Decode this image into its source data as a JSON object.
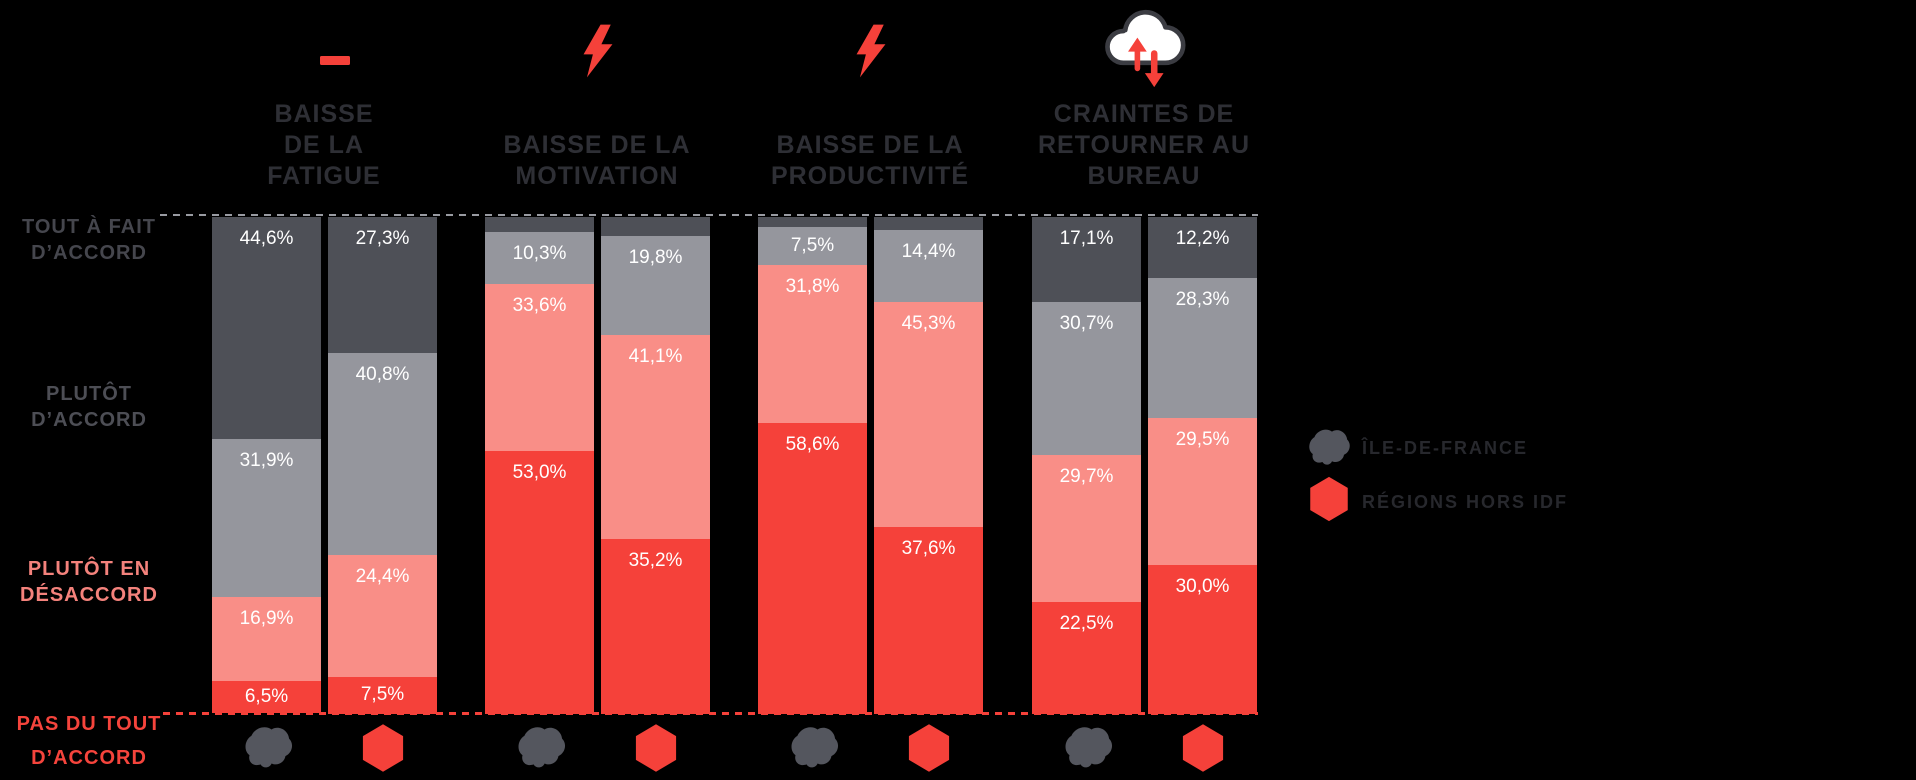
{
  "background_color": "#000000",
  "accent_color": "#f5413a",
  "chart_data": {
    "type": "bar",
    "stacked": true,
    "orientation": "vertical",
    "value_unit": "percent",
    "value_label_color": "#ffffff",
    "segment_colors": [
      "#4e5057",
      "#95969d",
      "#f98e87",
      "#f5413a"
    ],
    "axis": {
      "top_dashed_line_color": "#999ba2",
      "bottom_dashed_line_color": "#f5413a",
      "grid": "off"
    },
    "categories": [
      {
        "label": "TOUT À FAIT\nD’ACCORD",
        "color": "#45464d"
      },
      {
        "label": "PLUTÔT\nD’ACCORD",
        "color": "#4d4e55"
      },
      {
        "label": "PLUTÔT EN\nDÉSACCORD",
        "color": "#f4827c"
      },
      {
        "label": "PAS DU TOUT\nD’ACCORD",
        "color": "#f5443c"
      }
    ],
    "series_names": [
      "ÎLE-DE-FRANCE",
      "RÉGIONS HORS IDF"
    ],
    "x_axis_icons": [
      "idf-region-icon",
      "hexagon-icon"
    ],
    "groups": [
      {
        "id": "baisse-fatigue",
        "title": "BAISSE\nDE LA\nFATIGUE",
        "icon": "minus-icon",
        "series": [
          {
            "name": "ÎLE-DE-FRANCE",
            "segments": [
              {
                "value": 44.6,
                "label": "44,6%"
              },
              {
                "value": 31.9,
                "label": "31,9%"
              },
              {
                "value": 16.9,
                "label": "16,9%"
              },
              {
                "value": 6.5,
                "label": "6,5%"
              }
            ]
          },
          {
            "name": "RÉGIONS HORS IDF",
            "segments": [
              {
                "value": 27.3,
                "label": "27,3%"
              },
              {
                "value": 40.8,
                "label": "40,8%"
              },
              {
                "value": 24.4,
                "label": "24,4%"
              },
              {
                "value": 7.5,
                "label": "7,5%"
              }
            ]
          }
        ]
      },
      {
        "id": "baisse-motivation",
        "title": "BAISSE DE LA\nMOTIVATION",
        "icon": "lightning-icon",
        "series": [
          {
            "name": "ÎLE-DE-FRANCE",
            "segments": [
              {
                "value": 3.1,
                "label": ""
              },
              {
                "value": 10.3,
                "label": "10,3%"
              },
              {
                "value": 33.6,
                "label": "33,6%"
              },
              {
                "value": 53.0,
                "label": "53,0%"
              }
            ]
          },
          {
            "name": "RÉGIONS HORS IDF",
            "segments": [
              {
                "value": 3.9,
                "label": ""
              },
              {
                "value": 19.8,
                "label": "19,8%"
              },
              {
                "value": 41.1,
                "label": "41,1%"
              },
              {
                "value": 35.2,
                "label": "35,2%"
              }
            ]
          }
        ]
      },
      {
        "id": "baisse-productivite",
        "title": "BAISSE DE LA\nPRODUCTIVITÉ",
        "icon": "lightning-icon",
        "series": [
          {
            "name": "ÎLE-DE-FRANCE",
            "segments": [
              {
                "value": 2.1,
                "label": ""
              },
              {
                "value": 7.5,
                "label": "7,5%"
              },
              {
                "value": 31.8,
                "label": "31,8%"
              },
              {
                "value": 58.6,
                "label": "58,6%"
              }
            ]
          },
          {
            "name": "RÉGIONS HORS IDF",
            "segments": [
              {
                "value": 2.7,
                "label": ""
              },
              {
                "value": 14.4,
                "label": "14,4%"
              },
              {
                "value": 45.3,
                "label": "45,3%"
              },
              {
                "value": 37.6,
                "label": "37,6%"
              }
            ]
          }
        ]
      },
      {
        "id": "craintes-retour-bureau",
        "title": "CRAINTES DE\nRETOURNER AU\nBUREAU",
        "icon": "cloud-arrows-icon",
        "series": [
          {
            "name": "ÎLE-DE-FRANCE",
            "segments": [
              {
                "value": 17.1,
                "label": "17,1%"
              },
              {
                "value": 30.7,
                "label": "30,7%"
              },
              {
                "value": 29.7,
                "label": "29,7%"
              },
              {
                "value": 22.5,
                "label": "22,5%"
              }
            ]
          },
          {
            "name": "RÉGIONS HORS IDF",
            "segments": [
              {
                "value": 12.2,
                "label": "12,2%"
              },
              {
                "value": 28.3,
                "label": "28,3%"
              },
              {
                "value": 29.5,
                "label": "29,5%"
              },
              {
                "value": 30.0,
                "label": "30,0%"
              }
            ]
          }
        ]
      }
    ],
    "legend": {
      "position": "right",
      "items": [
        {
          "label": "ÎLE-DE-FRANCE",
          "icon": "idf-region-icon",
          "icon_color": "#54565e",
          "text_color": "#27282d"
        },
        {
          "label": "RÉGIONS HORS IDF",
          "icon": "hexagon-icon",
          "icon_color": "#f5413a",
          "text_color": "#27282d"
        }
      ]
    }
  }
}
